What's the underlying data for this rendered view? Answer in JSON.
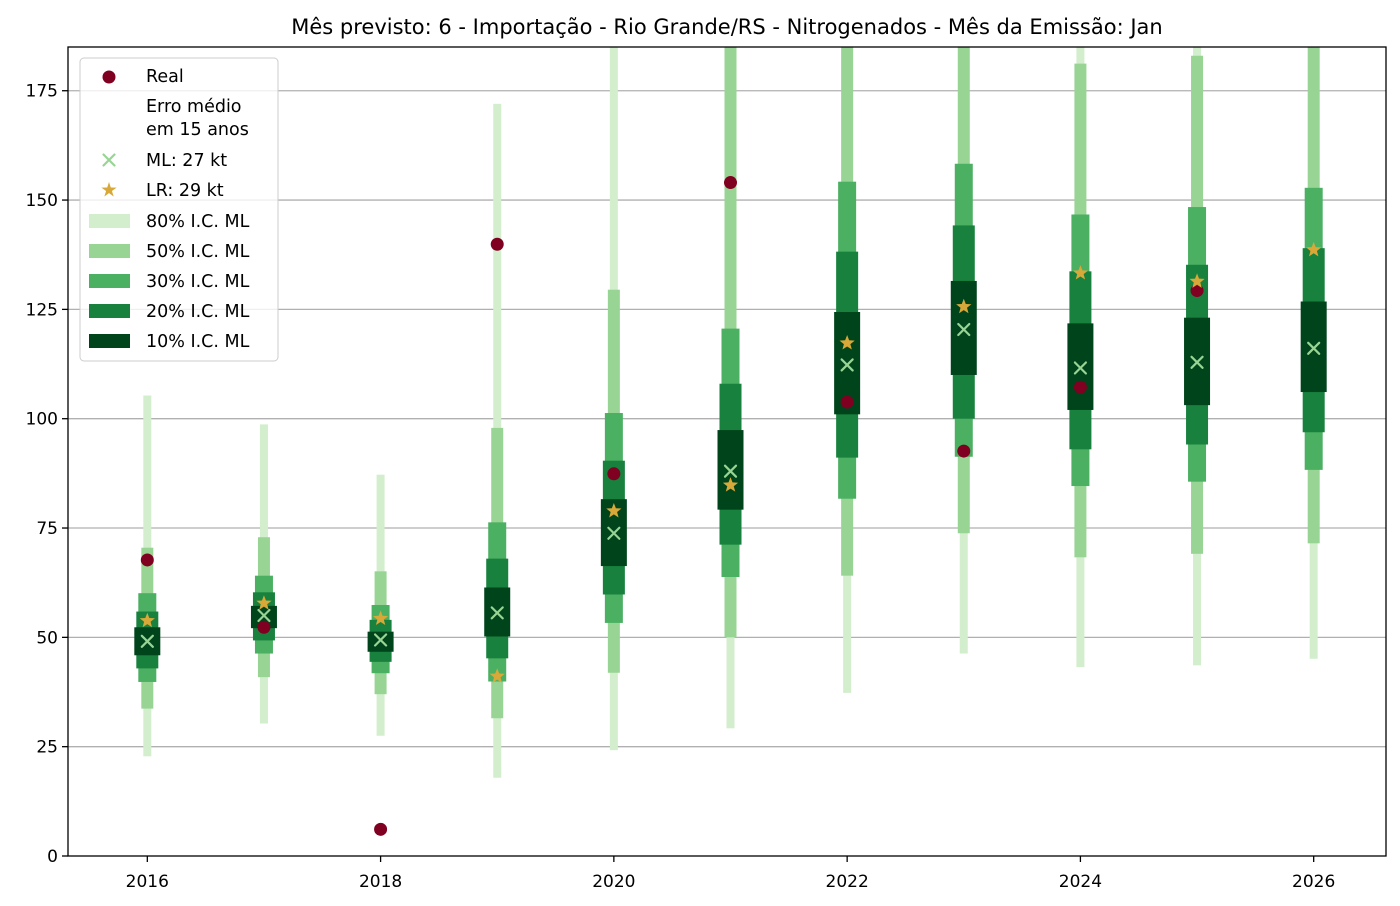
{
  "chart_data": {
    "type": "scatter",
    "title": "Mês previsto: 6 - Importação - Rio Grande/RS - Nitrogenados - Mês da Emissão: Jan",
    "xlabel": "",
    "ylabel": "",
    "xlim": [
      2015.32,
      2026.62
    ],
    "ylim": [
      0,
      185
    ],
    "x_ticks": [
      2016,
      2018,
      2020,
      2022,
      2024,
      2026
    ],
    "y_ticks": [
      0,
      25,
      50,
      75,
      100,
      125,
      150,
      175
    ],
    "grid": "horizontal",
    "legend_position": "top-left",
    "colors": {
      "real": "#7f0020",
      "ml": "#98d594",
      "lr": "#d8a838",
      "ci80": "#d3eecd",
      "ci50": "#98d594",
      "ci30": "#4bb062",
      "ci20": "#17813d",
      "ci10": "#00441b",
      "grid": "#b0b0b0"
    },
    "legend": {
      "real": "Real",
      "error_header_line1": "Erro médio",
      "error_header_line2": "em 15 anos",
      "ml": "ML: 27 kt",
      "lr": "LR: 29 kt",
      "ci80": "80% I.C. ML",
      "ci50": "50% I.C. ML",
      "ci30": "30% I.C. ML",
      "ci20": "20% I.C. ML",
      "ci10": "10% I.C. ML"
    },
    "x": [
      2016,
      2017,
      2018,
      2019,
      2020,
      2021,
      2022,
      2023,
      2024,
      2025,
      2026
    ],
    "series": [
      {
        "name": "Real",
        "marker": "circle",
        "values": [
          67.7,
          52.3,
          6.1,
          139.9,
          87.4,
          154.0,
          103.8,
          92.6,
          107.2,
          129.3,
          null
        ]
      },
      {
        "name": "ML: 27 kt",
        "marker": "x",
        "values": [
          49.1,
          55.0,
          49.4,
          55.6,
          73.8,
          88.0,
          112.3,
          120.4,
          111.6,
          112.9,
          116.1
        ]
      },
      {
        "name": "LR: 29 kt",
        "marker": "star",
        "values": [
          53.8,
          57.8,
          54.3,
          41.1,
          78.9,
          84.8,
          117.3,
          125.6,
          133.3,
          131.4,
          138.6
        ]
      }
    ],
    "intervals": [
      {
        "name": "80% I.C. ML",
        "low": [
          22.8,
          30.3,
          27.5,
          17.9,
          24.2,
          29.2,
          37.3,
          46.3,
          43.2,
          43.6,
          45.1
        ],
        "high": [
          105.3,
          98.7,
          87.2,
          172.0,
          185,
          185,
          185,
          185,
          185,
          185,
          185
        ]
      },
      {
        "name": "50% I.C. ML",
        "low": [
          33.7,
          40.9,
          37.0,
          31.5,
          41.9,
          50.0,
          64.1,
          73.8,
          68.3,
          69.1,
          71.5
        ],
        "high": [
          70.5,
          72.9,
          65.1,
          97.9,
          129.5,
          185,
          185,
          185,
          181.2,
          183.0,
          185
        ]
      },
      {
        "name": "30% I.C. ML",
        "low": [
          39.8,
          46.3,
          41.8,
          39.9,
          53.3,
          63.8,
          81.7,
          91.3,
          84.6,
          85.6,
          88.3
        ],
        "high": [
          60.1,
          64.1,
          57.4,
          76.3,
          101.3,
          120.6,
          154.2,
          158.3,
          146.7,
          148.4,
          152.8
        ]
      },
      {
        "name": "20% I.C. ML",
        "low": [
          42.9,
          49.3,
          44.4,
          45.2,
          59.8,
          71.2,
          91.1,
          100.0,
          93.0,
          94.1,
          96.9
        ],
        "high": [
          55.9,
          60.3,
          54.0,
          68.0,
          90.4,
          108.0,
          138.2,
          144.2,
          133.7,
          135.2,
          139.0
        ]
      },
      {
        "name": "10% I.C. ML",
        "low": [
          45.9,
          52.1,
          46.7,
          50.2,
          66.3,
          79.2,
          101.0,
          110.0,
          102.0,
          103.1,
          106.1
        ],
        "high": [
          52.3,
          57.2,
          51.3,
          61.4,
          81.6,
          97.4,
          124.4,
          131.5,
          121.8,
          123.1,
          126.8
        ]
      }
    ]
  }
}
